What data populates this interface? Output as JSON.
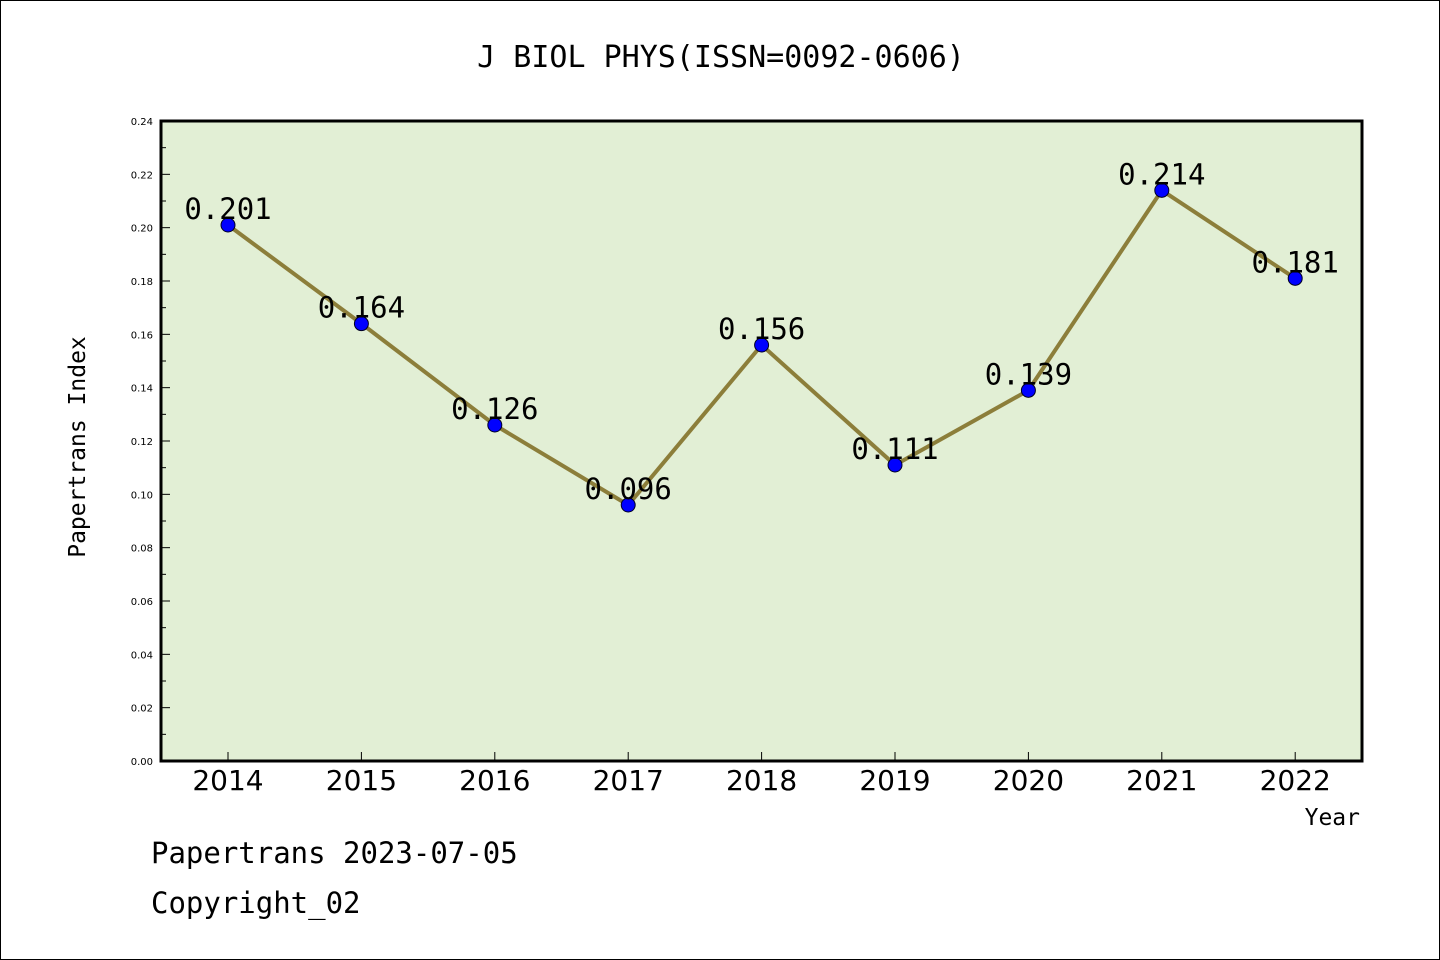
{
  "footer": {
    "line1": "Papertrans 2023-07-05",
    "line2": "Copyright_02"
  },
  "chart_data": {
    "type": "line",
    "title": "J BIOL PHYS(ISSN=0092-0606)",
    "xlabel": "Year",
    "ylabel": "Papertrans Index",
    "categories": [
      "2014",
      "2015",
      "2016",
      "2017",
      "2018",
      "2019",
      "2020",
      "2021",
      "2022"
    ],
    "values": [
      0.201,
      0.164,
      0.126,
      0.096,
      0.156,
      0.111,
      0.139,
      0.214,
      0.181
    ],
    "data_labels": [
      "0.201",
      "0.164",
      "0.126",
      "0.096",
      "0.156",
      "0.111",
      "0.139",
      "0.214",
      "0.181"
    ],
    "ylim": [
      0,
      0.24
    ],
    "yticks": [
      "0.00",
      "0.02",
      "0.04",
      "0.06",
      "0.08",
      "0.10",
      "0.12",
      "0.14",
      "0.16",
      "0.18",
      "0.20",
      "0.22",
      "0.24"
    ],
    "grid": false,
    "legend": "none",
    "colors": {
      "plot_background": "#e2efd5",
      "line": "#8c7e3a",
      "marker": "#0000ff",
      "axes": "#000000"
    }
  }
}
